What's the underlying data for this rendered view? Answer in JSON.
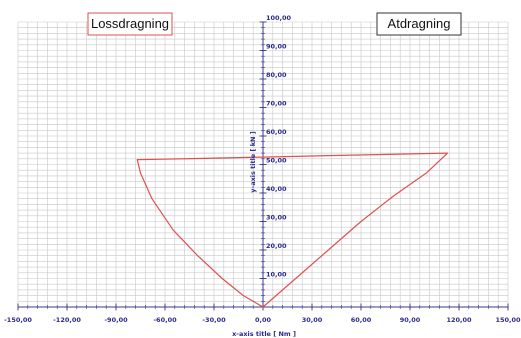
{
  "chart_data": {
    "type": "line",
    "title": "",
    "xlabel": "x-axis title [ Nm ]",
    "ylabel": "y-axis title [ kN ]",
    "xlim": [
      -150,
      150
    ],
    "ylim": [
      0,
      100
    ],
    "x_ticks": [
      "-150,00",
      "-120,00",
      "-90,00",
      "-60,00",
      "-30,00",
      "0,00",
      "30,00",
      "60,00",
      "90,00",
      "120,00",
      "150,00"
    ],
    "y_ticks": [
      "10,00",
      "20,00",
      "30,00",
      "40,00",
      "50,00",
      "60,00",
      "70,00",
      "80,00",
      "90,00",
      "100,00"
    ],
    "grid": true,
    "annotations": [
      {
        "text": "Lossdragning",
        "position": "top-left",
        "border_color": "#d9534f"
      },
      {
        "text": "Atdragning",
        "position": "top-right",
        "border_color": "#333333"
      }
    ],
    "series": [
      {
        "color": "#e05050",
        "points": [
          [
            0,
            0
          ],
          [
            20,
            10
          ],
          [
            40,
            20
          ],
          [
            60,
            30
          ],
          [
            80,
            39
          ],
          [
            100,
            47
          ],
          [
            113,
            54
          ],
          [
            80,
            53.6
          ],
          [
            40,
            53.1
          ],
          [
            0,
            52.6
          ],
          [
            -40,
            52.1
          ],
          [
            -77,
            51.7
          ],
          [
            -75,
            47
          ],
          [
            -68,
            38
          ],
          [
            -55,
            27
          ],
          [
            -40,
            18
          ],
          [
            -25,
            10
          ],
          [
            -12,
            4
          ],
          [
            0,
            0
          ]
        ]
      }
    ],
    "colors": {
      "grid": "#c8c8c8",
      "axis": "#3a3a8a",
      "line": "#e05050"
    }
  }
}
